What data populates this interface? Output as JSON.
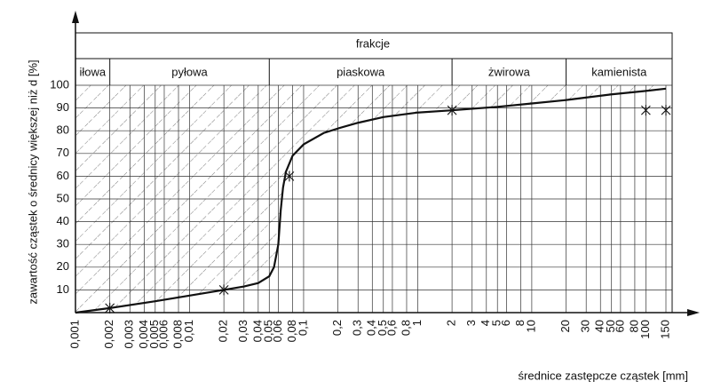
{
  "chart_data": {
    "type": "line",
    "header": "frakcje",
    "fractions": [
      "iłowa",
      "pyłowa",
      "piaskowa",
      "żwirowa",
      "kamienista"
    ],
    "fraction_bounds": [
      0.001,
      0.002,
      0.05,
      2,
      20,
      150
    ],
    "x_label": "średnice zastępcze cząstek [mm]",
    "y_label": "zawartość cząstek o średnicy większej niż d [%]",
    "log_x": true,
    "grid": true,
    "color": "#111111",
    "xlim": [
      0.001,
      150
    ],
    "ylim": [
      0,
      100
    ],
    "yticks": [
      10,
      20,
      30,
      40,
      50,
      60,
      70,
      80,
      90,
      100
    ],
    "xticks": [
      {
        "value": 0.001,
        "label": "0,001"
      },
      {
        "value": 0.002,
        "label": "0,002"
      },
      {
        "value": 0.003,
        "label": "0,003"
      },
      {
        "value": 0.004,
        "label": "0,004"
      },
      {
        "value": 0.005,
        "label": "0,005"
      },
      {
        "value": 0.006,
        "label": "0,006"
      },
      {
        "value": 0.008,
        "label": "0,008"
      },
      {
        "value": 0.01,
        "label": "0,01"
      },
      {
        "value": 0.02,
        "label": "0,02"
      },
      {
        "value": 0.03,
        "label": "0,03"
      },
      {
        "value": 0.04,
        "label": "0,04"
      },
      {
        "value": 0.05,
        "label": "0,05"
      },
      {
        "value": 0.06,
        "label": "0,06"
      },
      {
        "value": 0.08,
        "label": "0,08"
      },
      {
        "value": 0.1,
        "label": "0,1"
      },
      {
        "value": 0.2,
        "label": "0,2"
      },
      {
        "value": 0.3,
        "label": "0,3"
      },
      {
        "value": 0.4,
        "label": "0,4"
      },
      {
        "value": 0.5,
        "label": "0,5"
      },
      {
        "value": 0.6,
        "label": "0,6"
      },
      {
        "value": 0.8,
        "label": "0,8"
      },
      1,
      2,
      3,
      4,
      5,
      6,
      8,
      10,
      20,
      30,
      40,
      50,
      60,
      80,
      100,
      150
    ],
    "curve": {
      "x": [
        0.001,
        0.002,
        0.005,
        0.01,
        0.02,
        0.03,
        0.04,
        0.05,
        0.055,
        0.06,
        0.063,
        0.066,
        0.07,
        0.08,
        0.1,
        0.15,
        0.2,
        0.3,
        0.5,
        1,
        2,
        5,
        10,
        20,
        50,
        100,
        150
      ],
      "values": [
        0,
        2,
        5,
        7.5,
        10,
        11.5,
        13,
        16,
        20,
        30,
        45,
        55,
        62,
        69,
        74,
        79,
        81,
        83.5,
        86,
        88,
        89,
        90.5,
        92,
        93.5,
        96,
        97.5,
        98.5
      ]
    },
    "points": {
      "x": [
        0.002,
        0.02,
        0.075,
        2,
        100,
        150
      ],
      "values": [
        2,
        10,
        60,
        89,
        89,
        89
      ]
    }
  }
}
